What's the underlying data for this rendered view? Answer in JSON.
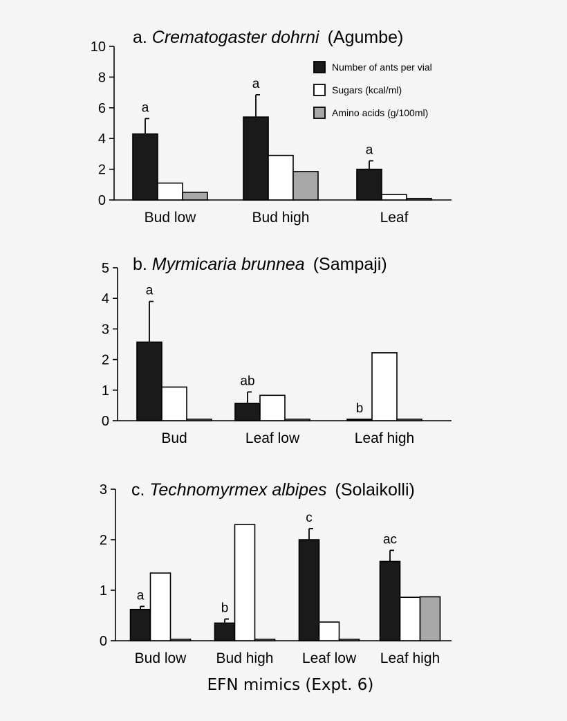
{
  "colors": {
    "background": "#f5f5f5",
    "ants": "#1a1a1a",
    "sugars": "#ffffff",
    "amino": "#a8a8a8",
    "stroke": "#000000"
  },
  "xlabel": "EFN mimics (Expt. 6)",
  "legend": [
    {
      "name": "Number of ants per vial",
      "color": "#1a1a1a"
    },
    {
      "name": "Sugars (kcal/ml)",
      "color": "#ffffff"
    },
    {
      "name": "Amino acids (g/100ml)",
      "color": "#a8a8a8"
    }
  ],
  "chart_data": [
    {
      "type": "bar",
      "title_prefix": "a.",
      "title_species": "Crematogaster dohrni",
      "title_site": "(Agumbe)",
      "categories": [
        "Bud low",
        "Bud high",
        "Leaf"
      ],
      "ylim": [
        0,
        10
      ],
      "yticks": [
        0,
        2,
        4,
        6,
        8,
        10
      ],
      "series": [
        {
          "name": "Number of ants per vial",
          "values": [
            4.3,
            5.4,
            2.0
          ],
          "errors": [
            1.0,
            1.45,
            0.55
          ]
        },
        {
          "name": "Sugars (kcal/ml)",
          "values": [
            1.1,
            2.9,
            0.35
          ]
        },
        {
          "name": "Amino acids (g/100ml)",
          "values": [
            0.5,
            1.85,
            0.1
          ]
        }
      ],
      "letters": [
        "a",
        "a",
        "a"
      ],
      "legend_position": "top-right"
    },
    {
      "type": "bar",
      "title_prefix": "b.",
      "title_species": "Myrmicaria brunnea",
      "title_site": "(Sampaji)",
      "categories": [
        "Bud",
        "Leaf low",
        "Leaf high"
      ],
      "ylim": [
        0,
        5
      ],
      "yticks": [
        0,
        1,
        2,
        3,
        4,
        5
      ],
      "series": [
        {
          "name": "Number of ants per vial",
          "values": [
            2.57,
            0.57,
            0.05
          ],
          "errors": [
            1.33,
            0.37,
            0
          ]
        },
        {
          "name": "Sugars (kcal/ml)",
          "values": [
            1.1,
            0.83,
            2.22
          ]
        },
        {
          "name": "Amino acids (g/100ml)",
          "values": [
            0.05,
            0.05,
            0.05
          ]
        }
      ],
      "letters": [
        "a",
        "ab",
        "b"
      ]
    },
    {
      "type": "bar",
      "title_prefix": "c.",
      "title_species": "Technomyrmex albipes",
      "title_site": "(Solaikolli)",
      "categories": [
        "Bud low",
        "Bud high",
        "Leaf low",
        "Leaf high"
      ],
      "ylim": [
        0,
        3
      ],
      "yticks": [
        0,
        1,
        2,
        3
      ],
      "series": [
        {
          "name": "Number of ants per vial",
          "values": [
            0.62,
            0.35,
            2.0,
            1.57
          ],
          "errors": [
            0.06,
            0.08,
            0.22,
            0.22
          ]
        },
        {
          "name": "Sugars (kcal/ml)",
          "values": [
            1.34,
            2.3,
            0.37,
            0.86
          ]
        },
        {
          "name": "Amino acids (g/100ml)",
          "values": [
            0.03,
            0.03,
            0.03,
            0.87
          ]
        }
      ],
      "letters": [
        "a",
        "b",
        "c",
        "ac"
      ]
    }
  ]
}
